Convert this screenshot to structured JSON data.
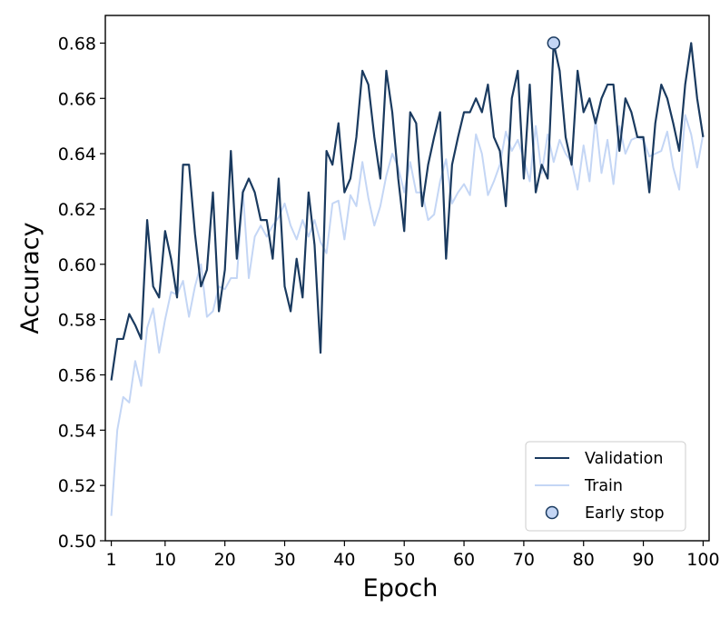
{
  "chart_data": {
    "type": "line",
    "title": "",
    "xlabel": "Epoch",
    "ylabel": "Accuracy",
    "xlim": [
      0,
      101
    ],
    "ylim": [
      0.5,
      0.69
    ],
    "xticks": [
      1,
      10,
      20,
      30,
      40,
      50,
      60,
      70,
      80,
      90,
      100
    ],
    "xtick_labels": [
      "1",
      "10",
      "20",
      "30",
      "40",
      "50",
      "60",
      "70",
      "80",
      "90",
      "100"
    ],
    "yticks": [
      0.5,
      0.52,
      0.54,
      0.56,
      0.58,
      0.6,
      0.62,
      0.64,
      0.66,
      0.68
    ],
    "ytick_labels": [
      "0.50",
      "0.52",
      "0.54",
      "0.56",
      "0.58",
      "0.60",
      "0.62",
      "0.64",
      "0.66",
      "0.68"
    ],
    "grid": false,
    "legend_position": "bottom-right",
    "series": [
      {
        "name": "Validation",
        "color": "#1a3a5f",
        "x": [
          1,
          2,
          3,
          4,
          5,
          6,
          7,
          8,
          9,
          10,
          11,
          12,
          13,
          14,
          15,
          16,
          17,
          18,
          19,
          20,
          21,
          22,
          23,
          24,
          25,
          26,
          27,
          28,
          29,
          30,
          31,
          32,
          33,
          34,
          35,
          36,
          37,
          38,
          39,
          40,
          41,
          42,
          43,
          44,
          45,
          46,
          47,
          48,
          49,
          50,
          51,
          52,
          53,
          54,
          55,
          56,
          57,
          58,
          59,
          60,
          61,
          62,
          63,
          64,
          65,
          66,
          67,
          68,
          69,
          70,
          71,
          72,
          73,
          74,
          75,
          76,
          77,
          78,
          79,
          80,
          81,
          82,
          83,
          84,
          85,
          86,
          87,
          88,
          89,
          90,
          91,
          92,
          93,
          94,
          95,
          96,
          97,
          98,
          99,
          100
        ],
        "values": [
          0.558,
          0.573,
          0.573,
          0.582,
          0.578,
          0.573,
          0.616,
          0.592,
          0.588,
          0.612,
          0.602,
          0.588,
          0.636,
          0.636,
          0.611,
          0.592,
          0.598,
          0.626,
          0.583,
          0.598,
          0.641,
          0.602,
          0.626,
          0.631,
          0.626,
          0.616,
          0.616,
          0.602,
          0.631,
          0.592,
          0.583,
          0.602,
          0.588,
          0.626,
          0.607,
          0.568,
          0.641,
          0.636,
          0.651,
          0.626,
          0.631,
          0.646,
          0.67,
          0.665,
          0.646,
          0.631,
          0.67,
          0.655,
          0.631,
          0.612,
          0.655,
          0.651,
          0.621,
          0.636,
          0.646,
          0.655,
          0.602,
          0.636,
          0.646,
          0.655,
          0.655,
          0.66,
          0.655,
          0.665,
          0.646,
          0.641,
          0.621,
          0.66,
          0.67,
          0.631,
          0.665,
          0.626,
          0.636,
          0.631,
          0.68,
          0.67,
          0.646,
          0.636,
          0.67,
          0.655,
          0.66,
          0.651,
          0.66,
          0.665,
          0.665,
          0.641,
          0.66,
          0.655,
          0.646,
          0.646,
          0.626,
          0.651,
          0.665,
          0.66,
          0.651,
          0.641,
          0.665,
          0.68,
          0.66,
          0.646
        ]
      },
      {
        "name": "Train",
        "color": "#c4d6f5",
        "x": [
          1,
          2,
          3,
          4,
          5,
          6,
          7,
          8,
          9,
          10,
          11,
          12,
          13,
          14,
          15,
          16,
          17,
          18,
          19,
          20,
          21,
          22,
          23,
          24,
          25,
          26,
          27,
          28,
          29,
          30,
          31,
          32,
          33,
          34,
          35,
          36,
          37,
          38,
          39,
          40,
          41,
          42,
          43,
          44,
          45,
          46,
          47,
          48,
          49,
          50,
          51,
          52,
          53,
          54,
          55,
          56,
          57,
          58,
          59,
          60,
          61,
          62,
          63,
          64,
          65,
          66,
          67,
          68,
          69,
          70,
          71,
          72,
          73,
          74,
          75,
          76,
          77,
          78,
          79,
          80,
          81,
          82,
          83,
          84,
          85,
          86,
          87,
          88,
          89,
          90,
          91,
          92,
          93,
          94,
          95,
          96,
          97,
          98,
          99,
          100
        ],
        "values": [
          0.509,
          0.54,
          0.552,
          0.55,
          0.565,
          0.556,
          0.577,
          0.584,
          0.568,
          0.58,
          0.59,
          0.589,
          0.594,
          0.581,
          0.592,
          0.6,
          0.581,
          0.583,
          0.592,
          0.591,
          0.595,
          0.595,
          0.627,
          0.595,
          0.61,
          0.614,
          0.61,
          0.614,
          0.617,
          0.622,
          0.614,
          0.609,
          0.616,
          0.61,
          0.616,
          0.608,
          0.604,
          0.622,
          0.623,
          0.609,
          0.625,
          0.621,
          0.637,
          0.624,
          0.614,
          0.621,
          0.632,
          0.64,
          0.635,
          0.626,
          0.637,
          0.626,
          0.626,
          0.616,
          0.618,
          0.63,
          0.638,
          0.622,
          0.626,
          0.629,
          0.625,
          0.647,
          0.64,
          0.625,
          0.63,
          0.636,
          0.648,
          0.641,
          0.645,
          0.638,
          0.63,
          0.65,
          0.633,
          0.647,
          0.637,
          0.645,
          0.64,
          0.637,
          0.627,
          0.643,
          0.63,
          0.653,
          0.633,
          0.645,
          0.629,
          0.65,
          0.64,
          0.645,
          0.646,
          0.645,
          0.639,
          0.64,
          0.641,
          0.648,
          0.635,
          0.627,
          0.654,
          0.647,
          0.635,
          0.647
        ]
      }
    ],
    "markers": [
      {
        "name": "Early stop",
        "x": 75,
        "y": 0.68,
        "face_color": "#c4d6f5",
        "edge_color": "#1a3a5f"
      }
    ]
  }
}
